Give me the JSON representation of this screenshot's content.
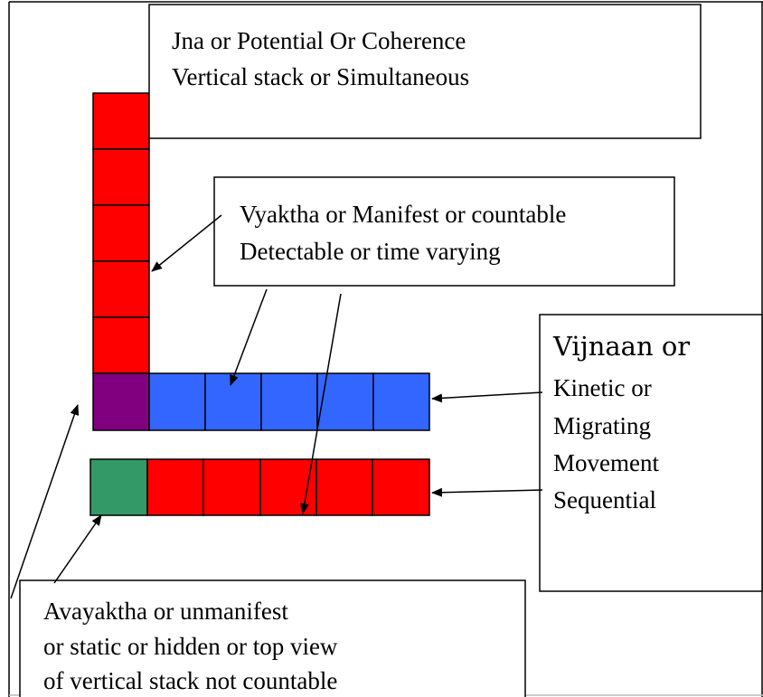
{
  "boxes": [
    {
      "lines": [
        "Jna or Potential Or Coherence",
        "Vertical stack or Simultaneous"
      ]
    },
    {
      "lines": [
        "Vyaktha or Manifest or countable",
        "Detectable or time varying"
      ]
    },
    {
      "lines": [
        "Vijnaan or",
        "Kinetic or",
        "Migrating",
        "Movement",
        "Sequential"
      ]
    },
    {
      "lines": [
        "Avayaktha or unmanifest",
        "or static or hidden or top view",
        "of vertical stack not countable"
      ]
    }
  ]
}
